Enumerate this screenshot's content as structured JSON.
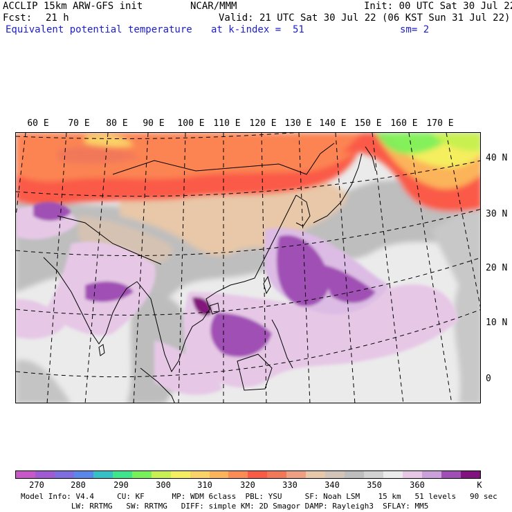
{
  "header": {
    "model": "ACCLIP 15km ARW-GFS init",
    "center": "NCAR/MMM",
    "init": "Init: 00 UTC Sat 30 Jul 22",
    "fcst_label": "Fcst:",
    "fcst_value": "21 h",
    "valid": "Valid: 21 UTC Sat 30 Jul 22 (06 KST Sun 31 Jul 22)",
    "field": "Equivalent potential temperature",
    "level": "at k-index =  51",
    "smooth": "sm= 2"
  },
  "map": {
    "lon_labels": [
      "60 E",
      "70 E",
      "80 E",
      "90 E",
      "100 E",
      "110 E",
      "120 E",
      "130 E",
      "140 E",
      "150 E",
      "160 E",
      "170 E"
    ],
    "lat_labels": [
      "40 N",
      "30 N",
      "20 N",
      "10 N",
      "0"
    ]
  },
  "colorbar": {
    "colors": [
      "#c857c8",
      "#a05ad2",
      "#7f6ee0",
      "#5a87ea",
      "#35c0c8",
      "#3ce68c",
      "#78f05a",
      "#c8f050",
      "#f5ee5f",
      "#fbd268",
      "#fbb45a",
      "#fb8c55",
      "#fa5a46",
      "#f2785a",
      "#f0a082",
      "#e8c8a8",
      "#d2c4b8",
      "#bebebe",
      "#d2d2d2",
      "#ebebeb",
      "#e6c8e6",
      "#cca0dc",
      "#a050b4",
      "#82127d"
    ],
    "ticks": [
      "270",
      "280",
      "290",
      "300",
      "310",
      "320",
      "330",
      "340",
      "350",
      "360"
    ],
    "unit": "K"
  },
  "footer": {
    "line1": "Model Info: V4.4     CU: KF      MP: WDM 6class  PBL: YSU     SF: Noah LSM    15 km   51 levels   90 sec",
    "line2": "           LW: RRTMG   SW: RRTMG   DIFF: simple KM: 2D Smagor DAMP: Rayleigh3  SFLAY: MM5"
  }
}
